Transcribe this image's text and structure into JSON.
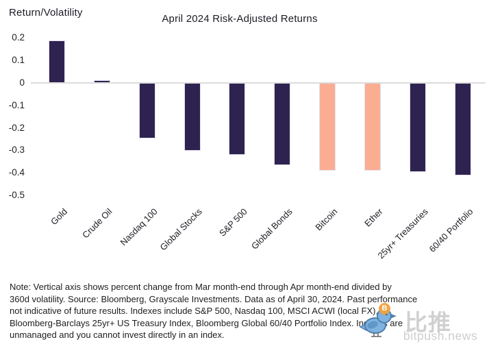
{
  "chart_data": {
    "type": "bar",
    "title": "April 2024 Risk-Adjusted Returns",
    "ylabel": "Return/Volatility",
    "categories": [
      "Gold",
      "Crude Oil",
      "Nasdaq 100",
      "Global Stocks",
      "S&P 500",
      "Global Bonds",
      "Bitcoin",
      "Ether",
      "25yr+ Treasuries",
      "60/40 Portfolio"
    ],
    "values": [
      0.185,
      0.01,
      -0.24,
      -0.295,
      -0.315,
      -0.36,
      -0.385,
      -0.385,
      -0.39,
      -0.405
    ],
    "highlight_indexes": [
      6,
      7
    ],
    "yticks": [
      "0.2",
      "0.1",
      "0",
      "-0.1",
      "-0.2",
      "-0.3",
      "-0.4",
      "-0.5"
    ],
    "ylim": [
      -0.5,
      0.2
    ],
    "grid": false,
    "legend": "none",
    "bar_color": "#2E2350",
    "highlight_color": "#FBAD92",
    "axis_line_color": "#DCDCDC"
  },
  "note": {
    "lines": [
      "Note: Vertical axis shows percent change from Mar month-end through Apr month-end divided by",
      "360d volatility. Source: Bloomberg, Grayscale Investments. Data as of April 30, 2024. Past performance",
      "not indicative of future results. Indexes include S&P 500, Nasdaq 100, MSCI ACWI (local FX),",
      "Bloomberg-Barclays 25yr+ US Treasury Index, Bloomberg Global 60/40 Portfolio Index. Indexes are",
      "unmanaged and you cannot invest directly in an index."
    ]
  },
  "watermark": {
    "brand_cn": "比推",
    "brand_site": "bitpush.news",
    "badge_letter": "B",
    "badge_color": "#F0A33C",
    "text_color": "#C8C8C8",
    "bird_fill": "#7FB2DE",
    "bird_outline": "#4E7FAC"
  }
}
